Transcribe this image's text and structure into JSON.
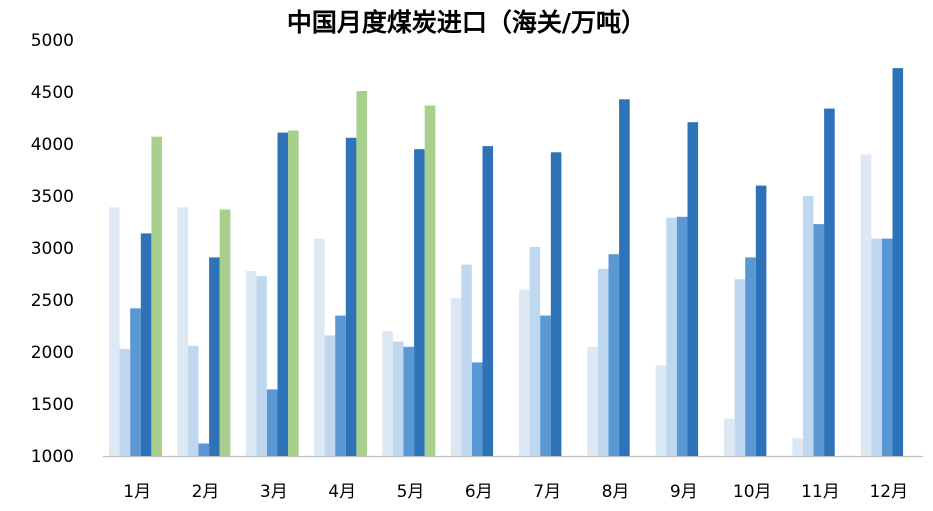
{
  "chart_data": {
    "type": "bar",
    "title": "中国月度煤炭进口（海关/万吨）",
    "xlabel": "",
    "ylabel": "",
    "ylim": [
      1000,
      5000
    ],
    "yticks": [
      1000,
      1500,
      2000,
      2500,
      3000,
      3500,
      4000,
      4500,
      5000
    ],
    "grid": false,
    "legend": "none",
    "categories": [
      "1月",
      "2月",
      "3月",
      "4月",
      "5月",
      "6月",
      "7月",
      "8月",
      "9月",
      "10月",
      "11月",
      "12月"
    ],
    "series": [
      {
        "color": "#dde8f5",
        "values": [
          3390,
          3390,
          2780,
          3090,
          2200,
          2520,
          2600,
          2050,
          1870,
          1360,
          1170,
          3900
        ]
      },
      {
        "color": "#c0d8ef",
        "values": [
          2030,
          2060,
          2730,
          2160,
          2100,
          2840,
          3010,
          2800,
          3290,
          2700,
          3500,
          3090
        ]
      },
      {
        "color": "#5a98d4",
        "values": [
          2420,
          1120,
          1640,
          2350,
          2050,
          1900,
          2350,
          2940,
          3300,
          2910,
          3230,
          3090
        ]
      },
      {
        "color": "#2e72b8",
        "values": [
          3140,
          2910,
          4110,
          4060,
          3950,
          3980,
          3920,
          4430,
          4210,
          3600,
          4340,
          4730
        ]
      },
      {
        "color": "#a6d08c",
        "values": [
          4070,
          3370,
          4130,
          4510,
          4370,
          null,
          null,
          null,
          null,
          null,
          null,
          null
        ]
      }
    ]
  }
}
